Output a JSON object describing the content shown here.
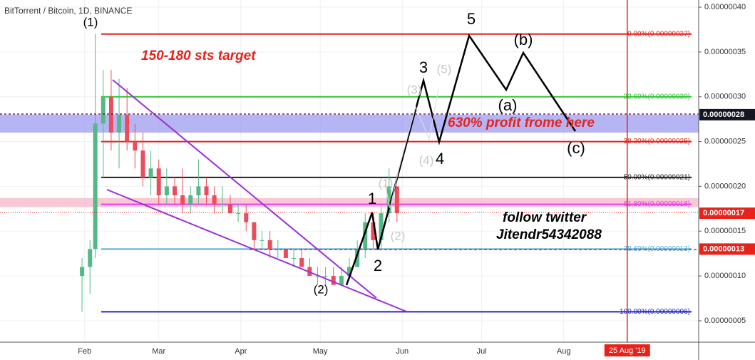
{
  "chart_data": {
    "type": "candlestick",
    "title": "BitTorrent / Bitcoin, 1D, BINANCE",
    "x": [
      31,
      34,
      36,
      39,
      42,
      45,
      48,
      51,
      54,
      57,
      60,
      63,
      66,
      69,
      72,
      75,
      78,
      81,
      84,
      87,
      90,
      93,
      96,
      99,
      102,
      105,
      108,
      111,
      114,
      117,
      120,
      123,
      126,
      129,
      132,
      135,
      138,
      141,
      144,
      147,
      150
    ],
    "open": [
      1e-07,
      1.1e-07,
      1.3e-07,
      2.7e-07,
      3e-07,
      2.6e-07,
      2.8e-07,
      2.5e-07,
      2.4e-07,
      2.1e-07,
      2.2e-07,
      1.9e-07,
      2e-07,
      1.9e-07,
      1.8e-07,
      1.9e-07,
      2e-07,
      1.9e-07,
      1.8e-07,
      1.8e-07,
      1.7e-07,
      1.7e-07,
      1.6e-07,
      1.4e-07,
      1.4e-07,
      1.3e-07,
      1.3e-07,
      1.2e-07,
      1.2e-07,
      1.1e-07,
      1e-07,
      1e-07,
      1e-07,
      9e-08,
      1e-07,
      1.1e-07,
      1.3e-07,
      1.6e-07,
      1.4e-07,
      1.7e-07,
      2e-07
    ],
    "high": [
      1.2e-07,
      1.4e-07,
      3.7e-07,
      3.3e-07,
      3.3e-07,
      3.2e-07,
      3.1e-07,
      2.7e-07,
      2.6e-07,
      2.4e-07,
      2.3e-07,
      2.2e-07,
      2.1e-07,
      2.2e-07,
      2e-07,
      2.3e-07,
      2.1e-07,
      2e-07,
      2e-07,
      1.9e-07,
      1.8e-07,
      1.8e-07,
      1.6e-07,
      1.5e-07,
      1.5e-07,
      1.4e-07,
      1.3e-07,
      1.3e-07,
      1.3e-07,
      1.2e-07,
      1.1e-07,
      1.1e-07,
      1.1e-07,
      1.1e-07,
      1.2e-07,
      1.4e-07,
      1.7e-07,
      1.7e-07,
      1.8e-07,
      2.2e-07,
      2e-07
    ],
    "low": [
      6e-08,
      8e-08,
      1.2e-07,
      2.1e-07,
      2.4e-07,
      2.2e-07,
      2.4e-07,
      2.2e-07,
      2e-07,
      1.9e-07,
      1.8e-07,
      1.8e-07,
      1.8e-07,
      1.7e-07,
      1.7e-07,
      1.8e-07,
      1.8e-07,
      1.7e-07,
      1.7e-07,
      1.7e-07,
      1.6e-07,
      1.5e-07,
      1.3e-07,
      1.3e-07,
      1.2e-07,
      1.2e-07,
      1.2e-07,
      1.1e-07,
      1.1e-07,
      1e-07,
      9e-08,
      9e-08,
      9e-08,
      9e-08,
      1e-07,
      1.1e-07,
      1.2e-07,
      1.3e-07,
      1.3e-07,
      1.6e-07,
      1.6e-07
    ],
    "close": [
      1.1e-07,
      1.3e-07,
      2.7e-07,
      3e-07,
      2.6e-07,
      2.8e-07,
      2.5e-07,
      2.4e-07,
      2.1e-07,
      2.2e-07,
      1.9e-07,
      2e-07,
      1.9e-07,
      1.8e-07,
      1.9e-07,
      2e-07,
      1.9e-07,
      1.8e-07,
      1.8e-07,
      1.7e-07,
      1.7e-07,
      1.6e-07,
      1.4e-07,
      1.4e-07,
      1.3e-07,
      1.3e-07,
      1.2e-07,
      1.2e-07,
      1.1e-07,
      1e-07,
      1e-07,
      1e-07,
      9e-08,
      1e-07,
      1.1e-07,
      1.3e-07,
      1.6e-07,
      1.4e-07,
      1.7e-07,
      2e-07,
      1.7e-07
    ],
    "up_color": "#53b987",
    "down_color": "#eb4d5c",
    "xlim": [
      0,
      264
    ],
    "xticks": [
      {
        "value": 32,
        "label": "Feb"
      },
      {
        "value": 60,
        "label": "Mar"
      },
      {
        "value": 91,
        "label": "Apr"
      },
      {
        "value": 121,
        "label": "May"
      },
      {
        "value": 152,
        "label": "Jun"
      },
      {
        "value": 182,
        "label": "Jul"
      },
      {
        "value": 213,
        "label": "Aug"
      }
    ],
    "x_marker": {
      "value": 237,
      "label": "25 Aug '19",
      "color": "#e8221b"
    },
    "ylim": [
      2.61e-08,
      4.08e-07
    ],
    "yticks": [
      {
        "value": 5e-08,
        "label": "0.00000005"
      },
      {
        "value": 1e-07,
        "label": "0.00000010"
      },
      {
        "value": 1.5e-07,
        "label": "0.00000015"
      },
      {
        "value": 2e-07,
        "label": "0.00000020"
      },
      {
        "value": 2.5e-07,
        "label": "0.00000025"
      },
      {
        "value": 3e-07,
        "label": "0.00000030"
      },
      {
        "value": 3.5e-07,
        "label": "0.00000035"
      },
      {
        "value": 4e-07,
        "label": "0.00000040"
      }
    ],
    "grid": true,
    "fib_levels": [
      {
        "value": 3.7e-07,
        "label": "0.00%(0.00000037)",
        "color": "#e8221b"
      },
      {
        "value": 3e-07,
        "label": "23.60%(0.00000030)",
        "color": "#35c435"
      },
      {
        "value": 2.5e-07,
        "label": "38.20%(0.00000025)",
        "color": "#e8221b"
      },
      {
        "value": 2.1e-07,
        "label": "50.00%(0.00000021)",
        "color": "#222222"
      },
      {
        "value": 1.8e-07,
        "label": "61.80%(0.00000018)",
        "color": "#e83be8"
      },
      {
        "value": 1.3e-07,
        "label": "78.60%(0.00000013)",
        "color": "#5aa9d6"
      },
      {
        "value": 6e-08,
        "label": "100.00%(0.00000006)",
        "color": "#2323c8"
      }
    ],
    "zones": [
      {
        "from": 2.6e-07,
        "to": 2.8e-07,
        "color": "#9c9cf0"
      },
      {
        "from": 1.77e-07,
        "to": 1.87e-07,
        "color": "#f7b6c8"
      }
    ],
    "price_labels": [
      {
        "value": 2.8e-07,
        "label": "0.00000028",
        "color": "#131722"
      },
      {
        "value": 1.7e-07,
        "label": "0.00000017",
        "color": "#e8221b"
      },
      {
        "value": 1.3e-07,
        "label": "0.00000013",
        "color": "#e8221b"
      }
    ],
    "annotations": {
      "target": "150-180 sts target",
      "profit": "630% profit frome here",
      "follow": "follow twitter",
      "handle": "Jitendr54342088"
    },
    "wave_labels": [
      "(1)",
      "(2)",
      "1",
      "2",
      "3",
      "4",
      "5",
      "(a)",
      "(b)",
      "(c)"
    ],
    "alt_wave_labels": [
      "(1)",
      "(2)",
      "(3)",
      "(4)",
      "(5)"
    ]
  }
}
